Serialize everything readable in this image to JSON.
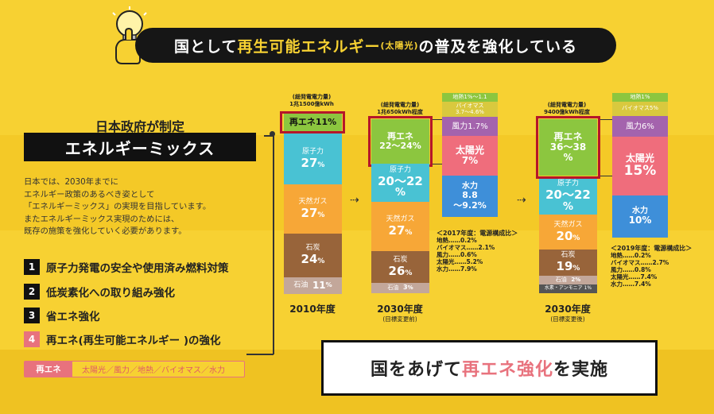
{
  "header": {
    "part1": "国として",
    "highlight": "再生可能エネルギー",
    "small": "(太陽光)",
    "part2": "の普及を強化している"
  },
  "left": {
    "gov": "日本政府が制定",
    "mix_title": "エネルギーミックス",
    "desc_lines": [
      "日本では、2030年までに",
      "エネルギー政策のあるべき姿として",
      "「エネルギーミックス」の実現を目指しています。",
      "またエネルギーミックス実現のためには、",
      "既存の施策を強化していく必要があります。"
    ],
    "policies": [
      {
        "num": "1",
        "text": "原子力発電の安全や使用済み燃料対策"
      },
      {
        "num": "2",
        "text": "低炭素化への取り組み強化"
      },
      {
        "num": "3",
        "text": "省エネ強化"
      },
      {
        "num": "4",
        "text": "再エネ(再生可能エネルギー )の強化"
      }
    ],
    "re_tag": "再エネ",
    "re_items": "太陽光／風力／地熱／バイオマス／水力"
  },
  "bars": {
    "b2010": {
      "note": "(総発電電力量)\n1兆1500億kWh",
      "re": "再エネ11%",
      "nuc_label": "原子力",
      "nuc": "27",
      "gas_label": "天然ガス",
      "gas": "27",
      "coal_label": "石炭",
      "coal": "24",
      "oil_label": "石油",
      "oil": "11",
      "pct": "%",
      "year": "2010年度"
    },
    "b2030a": {
      "note": "(総発電電力量)\n1兆650kWh程度",
      "re_label": "再エネ",
      "re": "22～24%",
      "nuc_label": "原子力",
      "nuc": "20～22",
      "gas_label": "天然ガス",
      "gas": "27",
      "coal_label": "石炭",
      "coal": "26",
      "oil_label": "石油",
      "oil": "3",
      "pct": "%",
      "year": "2030年度",
      "sub": "(目標変更前)",
      "detail": {
        "geo": "地熱1%～1.1",
        "bio": "バイオマス\n3.7～4.6%",
        "wind": "風力1.7%",
        "solar_label": "太陽光",
        "solar": "7%",
        "hydro_label": "水力",
        "hydro": "8.8\n～9.2%"
      },
      "breakdown_title": "＜2017年度：電源構成比＞",
      "breakdown": [
        "地熱……0.2%",
        "バイオマス……2.1%",
        "風力……0.6%",
        "太陽光……5.2%",
        "水力……7.9%"
      ]
    },
    "b2030b": {
      "note": "(総発電電力量)\n9400億kWh程度",
      "re_label": "再エネ",
      "re": "36～38\n%",
      "nuc_label": "原子力",
      "nuc": "20～22",
      "gas_label": "天然ガス",
      "gas": "20",
      "coal_label": "石炭",
      "coal": "19",
      "oil_label": "石油",
      "oil": "2",
      "nh3": "水素・アンモニア 1%",
      "pct": "%",
      "year": "2030年度",
      "sub": "(目標変更後)",
      "detail": {
        "geo": "地熱1%",
        "bio": "バイオマス5%",
        "wind": "風力6%",
        "solar_label": "太陽光",
        "solar": "15%",
        "hydro_label": "水力",
        "hydro": "10%"
      },
      "breakdown_title": "＜2019年度：電源構成比＞",
      "breakdown": [
        "地熱……0.2%",
        "バイオマス……2.7%",
        "風力……0.8%",
        "太陽光……7.4%",
        "水力……7.4%"
      ]
    }
  },
  "bottom": {
    "part1": "国をあげて",
    "highlight": "再エネ強化",
    "part2": "を実施"
  },
  "colors": {
    "yellow": "#f7d132",
    "renewable": "#8cc63f",
    "highlight_pink": "#e8727d",
    "red_frame": "#b5162a"
  }
}
